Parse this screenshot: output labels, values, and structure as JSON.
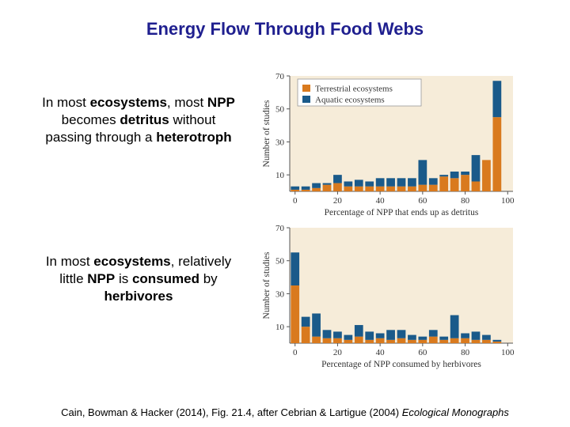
{
  "slide": {
    "title": "Energy Flow Through Food Webs",
    "caption1": {
      "p1": "In most ",
      "b1": "ecosystems",
      "p2": ", most ",
      "b2": "NPP",
      "p3": " becomes ",
      "b3": "detritus",
      "p4": " without passing through a ",
      "b4": "heterotroph"
    },
    "caption2": {
      "p1": "In most ",
      "b1": "ecosystems",
      "p2": ", relatively little ",
      "b2": "NPP",
      "p3": " is ",
      "b3": "consumed",
      "p4": " by ",
      "b4": "herbivores"
    },
    "citation_text": "Cain, Bowman & Hacker (2014), Fig. 21.4, after Cebrian & Lartigue (2004) ",
    "citation_journal": "Ecological Monographs"
  },
  "colors": {
    "terrestrial": "#d97a1e",
    "aquatic": "#1a5a8a",
    "plot_bg": "#f6ecd9",
    "title": "#1f1f8f"
  },
  "chart_data": [
    {
      "type": "bar",
      "stacked": true,
      "xlabel": "Percentage of NPP that ends up as detritus",
      "ylabel": "Number of studies",
      "ylim": [
        0,
        70
      ],
      "yticks": [
        10,
        30,
        50,
        70
      ],
      "xlim": [
        -2.5,
        102.5
      ],
      "xticks": [
        0,
        20,
        40,
        60,
        80,
        100
      ],
      "legend": {
        "position": "top-left",
        "entries": [
          "Terrestrial ecosystems",
          "Aquatic ecosystems"
        ]
      },
      "x": [
        0,
        5,
        10,
        15,
        20,
        25,
        30,
        35,
        40,
        45,
        50,
        55,
        60,
        65,
        70,
        75,
        80,
        85,
        90,
        95
      ],
      "series": [
        {
          "name": "Terrestrial ecosystems",
          "color": "#d97a1e",
          "values": [
            1,
            1,
            2,
            4,
            5,
            3,
            3,
            3,
            3,
            3,
            3,
            3,
            4,
            4,
            9,
            8,
            10,
            6,
            19,
            45
          ]
        },
        {
          "name": "Aquatic ecosystems",
          "color": "#1a5a8a",
          "values": [
            2,
            2,
            3,
            1,
            5,
            3,
            4,
            3,
            5,
            5,
            5,
            5,
            15,
            4,
            1,
            4,
            2,
            16,
            0,
            22
          ]
        }
      ]
    },
    {
      "type": "bar",
      "stacked": true,
      "xlabel": "Percentage of NPP consumed by herbivores",
      "ylabel": "Number of studies",
      "ylim": [
        0,
        70
      ],
      "yticks": [
        10,
        30,
        50,
        70
      ],
      "xlim": [
        -2.5,
        102.5
      ],
      "xticks": [
        0,
        20,
        40,
        60,
        80,
        100
      ],
      "x": [
        0,
        5,
        10,
        15,
        20,
        25,
        30,
        35,
        40,
        45,
        50,
        55,
        60,
        65,
        70,
        75,
        80,
        85,
        90,
        95
      ],
      "series": [
        {
          "name": "Terrestrial ecosystems",
          "color": "#d97a1e",
          "values": [
            35,
            10,
            4,
            3,
            3,
            2,
            4,
            2,
            3,
            2,
            3,
            2,
            2,
            4,
            2,
            3,
            3,
            2,
            2,
            1
          ]
        },
        {
          "name": "Aquatic ecosystems",
          "color": "#1a5a8a",
          "values": [
            20,
            6,
            14,
            5,
            4,
            3,
            7,
            5,
            3,
            6,
            5,
            3,
            2,
            4,
            2,
            14,
            3,
            5,
            3,
            1
          ]
        }
      ]
    }
  ]
}
